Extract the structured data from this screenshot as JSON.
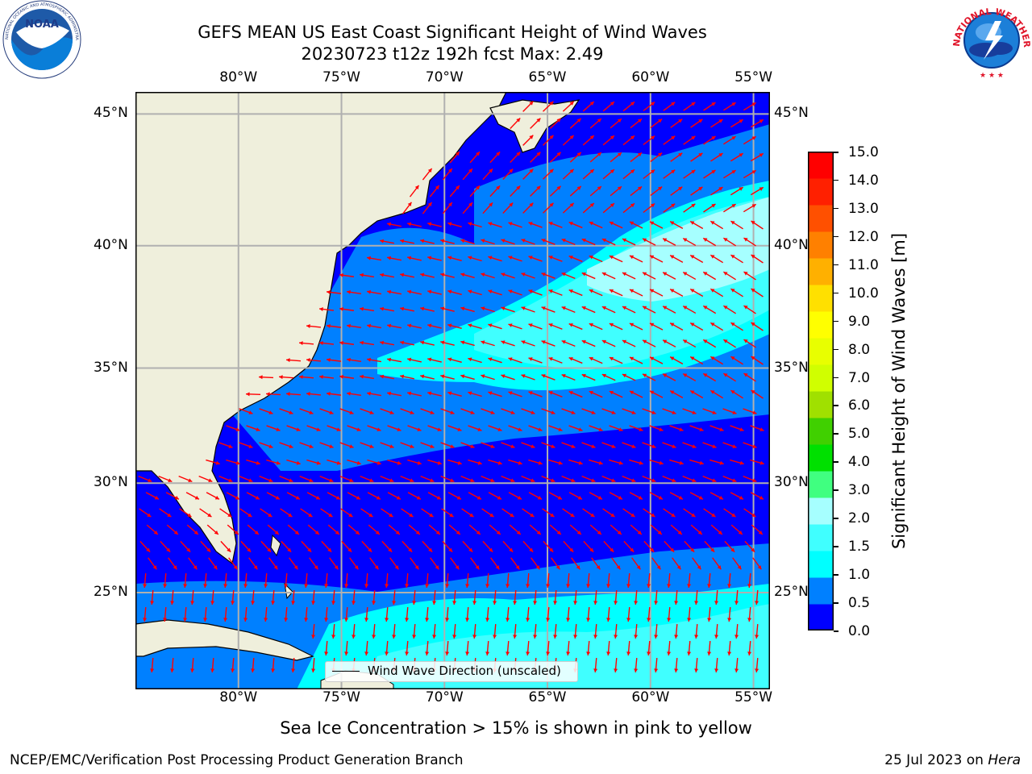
{
  "title": {
    "line1": "GEFS MEAN US East Coast Significant Height of Wind Waves",
    "line2": "20230723 t12z 192h fcst   Max: 2.49"
  },
  "logos": {
    "left": {
      "name": "noaa-logo",
      "text": "NOAA",
      "ring_text": "NATIONAL OCEANIC AND ATMOSPHERIC ADMINISTRATION · U.S. DEPARTMENT OF COMMERCE"
    },
    "right": {
      "name": "nws-logo",
      "ring_text": "NATIONAL WEATHER SERVICE"
    }
  },
  "map": {
    "lon_labels": [
      "80°W",
      "75°W",
      "70°W",
      "65°W",
      "60°W",
      "55°W"
    ],
    "lon_values": [
      -80,
      -75,
      -70,
      -65,
      -60,
      -55
    ],
    "lat_labels": [
      "45°N",
      "40°N",
      "35°N",
      "30°N",
      "25°N"
    ],
    "lat_values": [
      45,
      40,
      35,
      30,
      25
    ],
    "extent": {
      "lon_min": -85,
      "lon_max": -54.2,
      "lat_min": 20.4,
      "lat_max": 45.8
    },
    "colors": {
      "land": "#efefdc",
      "ocean_0": "#0000ff",
      "ocean_05": "#0080ff",
      "ocean_1": "#00ffff",
      "ocean_15": "#40ffff",
      "ocean_2": "#a6ffff",
      "arrow": "#ff0000",
      "grid": "#b0b0b0"
    },
    "legend_label": "Wind Wave Direction (unscaled)"
  },
  "colorbar": {
    "ticks": [
      "15.0",
      "14.0",
      "13.0",
      "12.0",
      "11.0",
      "10.0",
      "9.0",
      "8.0",
      "7.0",
      "6.0",
      "5.0",
      "4.0",
      "3.0",
      "2.0",
      "1.5",
      "1.0",
      "0.5",
      "0.0"
    ],
    "colors_bottom_to_top": [
      "#0000ff",
      "#0080ff",
      "#00ffff",
      "#40ffff",
      "#a6ffff",
      "#40ff80",
      "#00e000",
      "#40d000",
      "#a0e000",
      "#d0ff00",
      "#e8ff00",
      "#ffff00",
      "#ffe000",
      "#ffb000",
      "#ff8000",
      "#ff5000",
      "#ff2000",
      "#ff0000"
    ],
    "label": "Significant Height of Wind Waves [m]"
  },
  "note": "Sea Ice Concentration > 15% is shown in pink to yellow",
  "footer": {
    "left": "NCEP/EMC/Verification Post Processing Product Generation Branch",
    "date": "25 Jul 2023 on ",
    "machine": "Hera"
  }
}
